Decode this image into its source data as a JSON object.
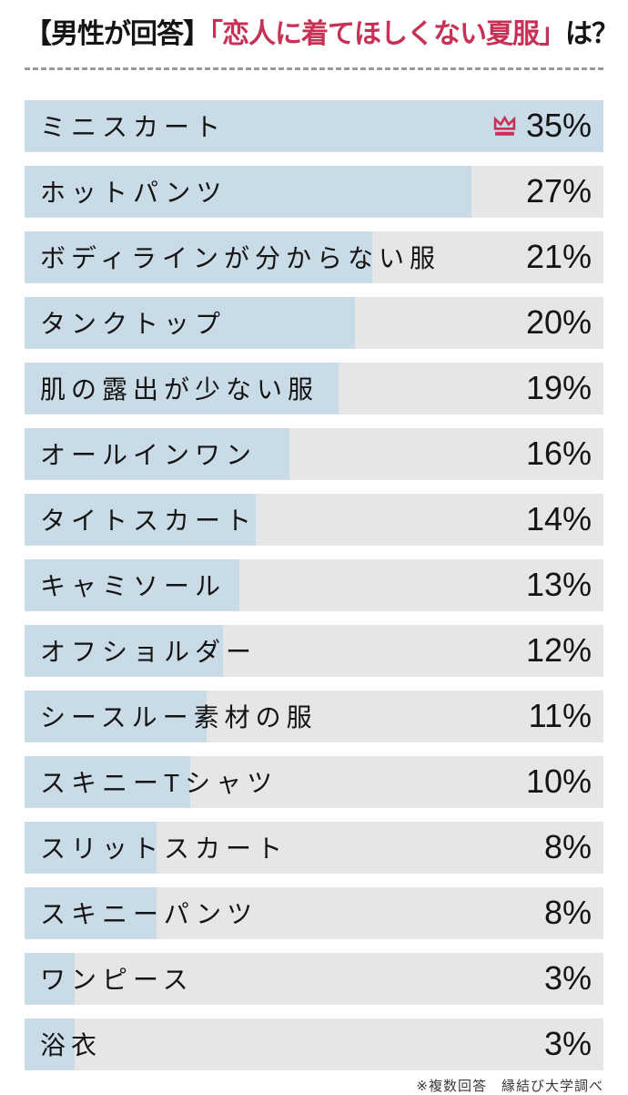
{
  "title": {
    "prefix": "【男性が回答】",
    "highlight": "「恋人に着てほしくない夏服」",
    "suffix": "は？"
  },
  "footnote": "※複数回答　縁結び大学調べ",
  "colors": {
    "bar_fill": "#c9dbe6",
    "bar_track": "#e6e6e6",
    "accent_red": "#c73156",
    "text_ink": "#141414",
    "divider_gray": "#9a9a9a",
    "footnote_gray": "#3a3a3a"
  },
  "chart_data": {
    "type": "bar",
    "orientation": "horizontal",
    "title": "【男性が回答】「恋人に着てほしくない夏服」は？",
    "unit": "%",
    "max_value": 35,
    "rank1_icon": "crown-icon",
    "legend": null,
    "grid": false,
    "categories": [
      "ミニスカート",
      "ホットパンツ",
      "ボディラインが分からない服",
      "タンクトップ",
      "肌の露出が少ない服",
      "オールインワン",
      "タイトスカート",
      "キャミソール",
      "オフショルダー",
      "シースルー素材の服",
      "スキニーTシャツ",
      "スリットスカート",
      "スキニーパンツ",
      "ワンピース",
      "浴衣"
    ],
    "values": [
      35,
      27,
      21,
      20,
      19,
      16,
      14,
      13,
      12,
      11,
      10,
      8,
      8,
      3,
      3
    ],
    "value_labels": [
      "35%",
      "27%",
      "21%",
      "20%",
      "19%",
      "16%",
      "14%",
      "13%",
      "12%",
      "11%",
      "10%",
      "8%",
      "8%",
      "3%",
      "3%"
    ]
  }
}
